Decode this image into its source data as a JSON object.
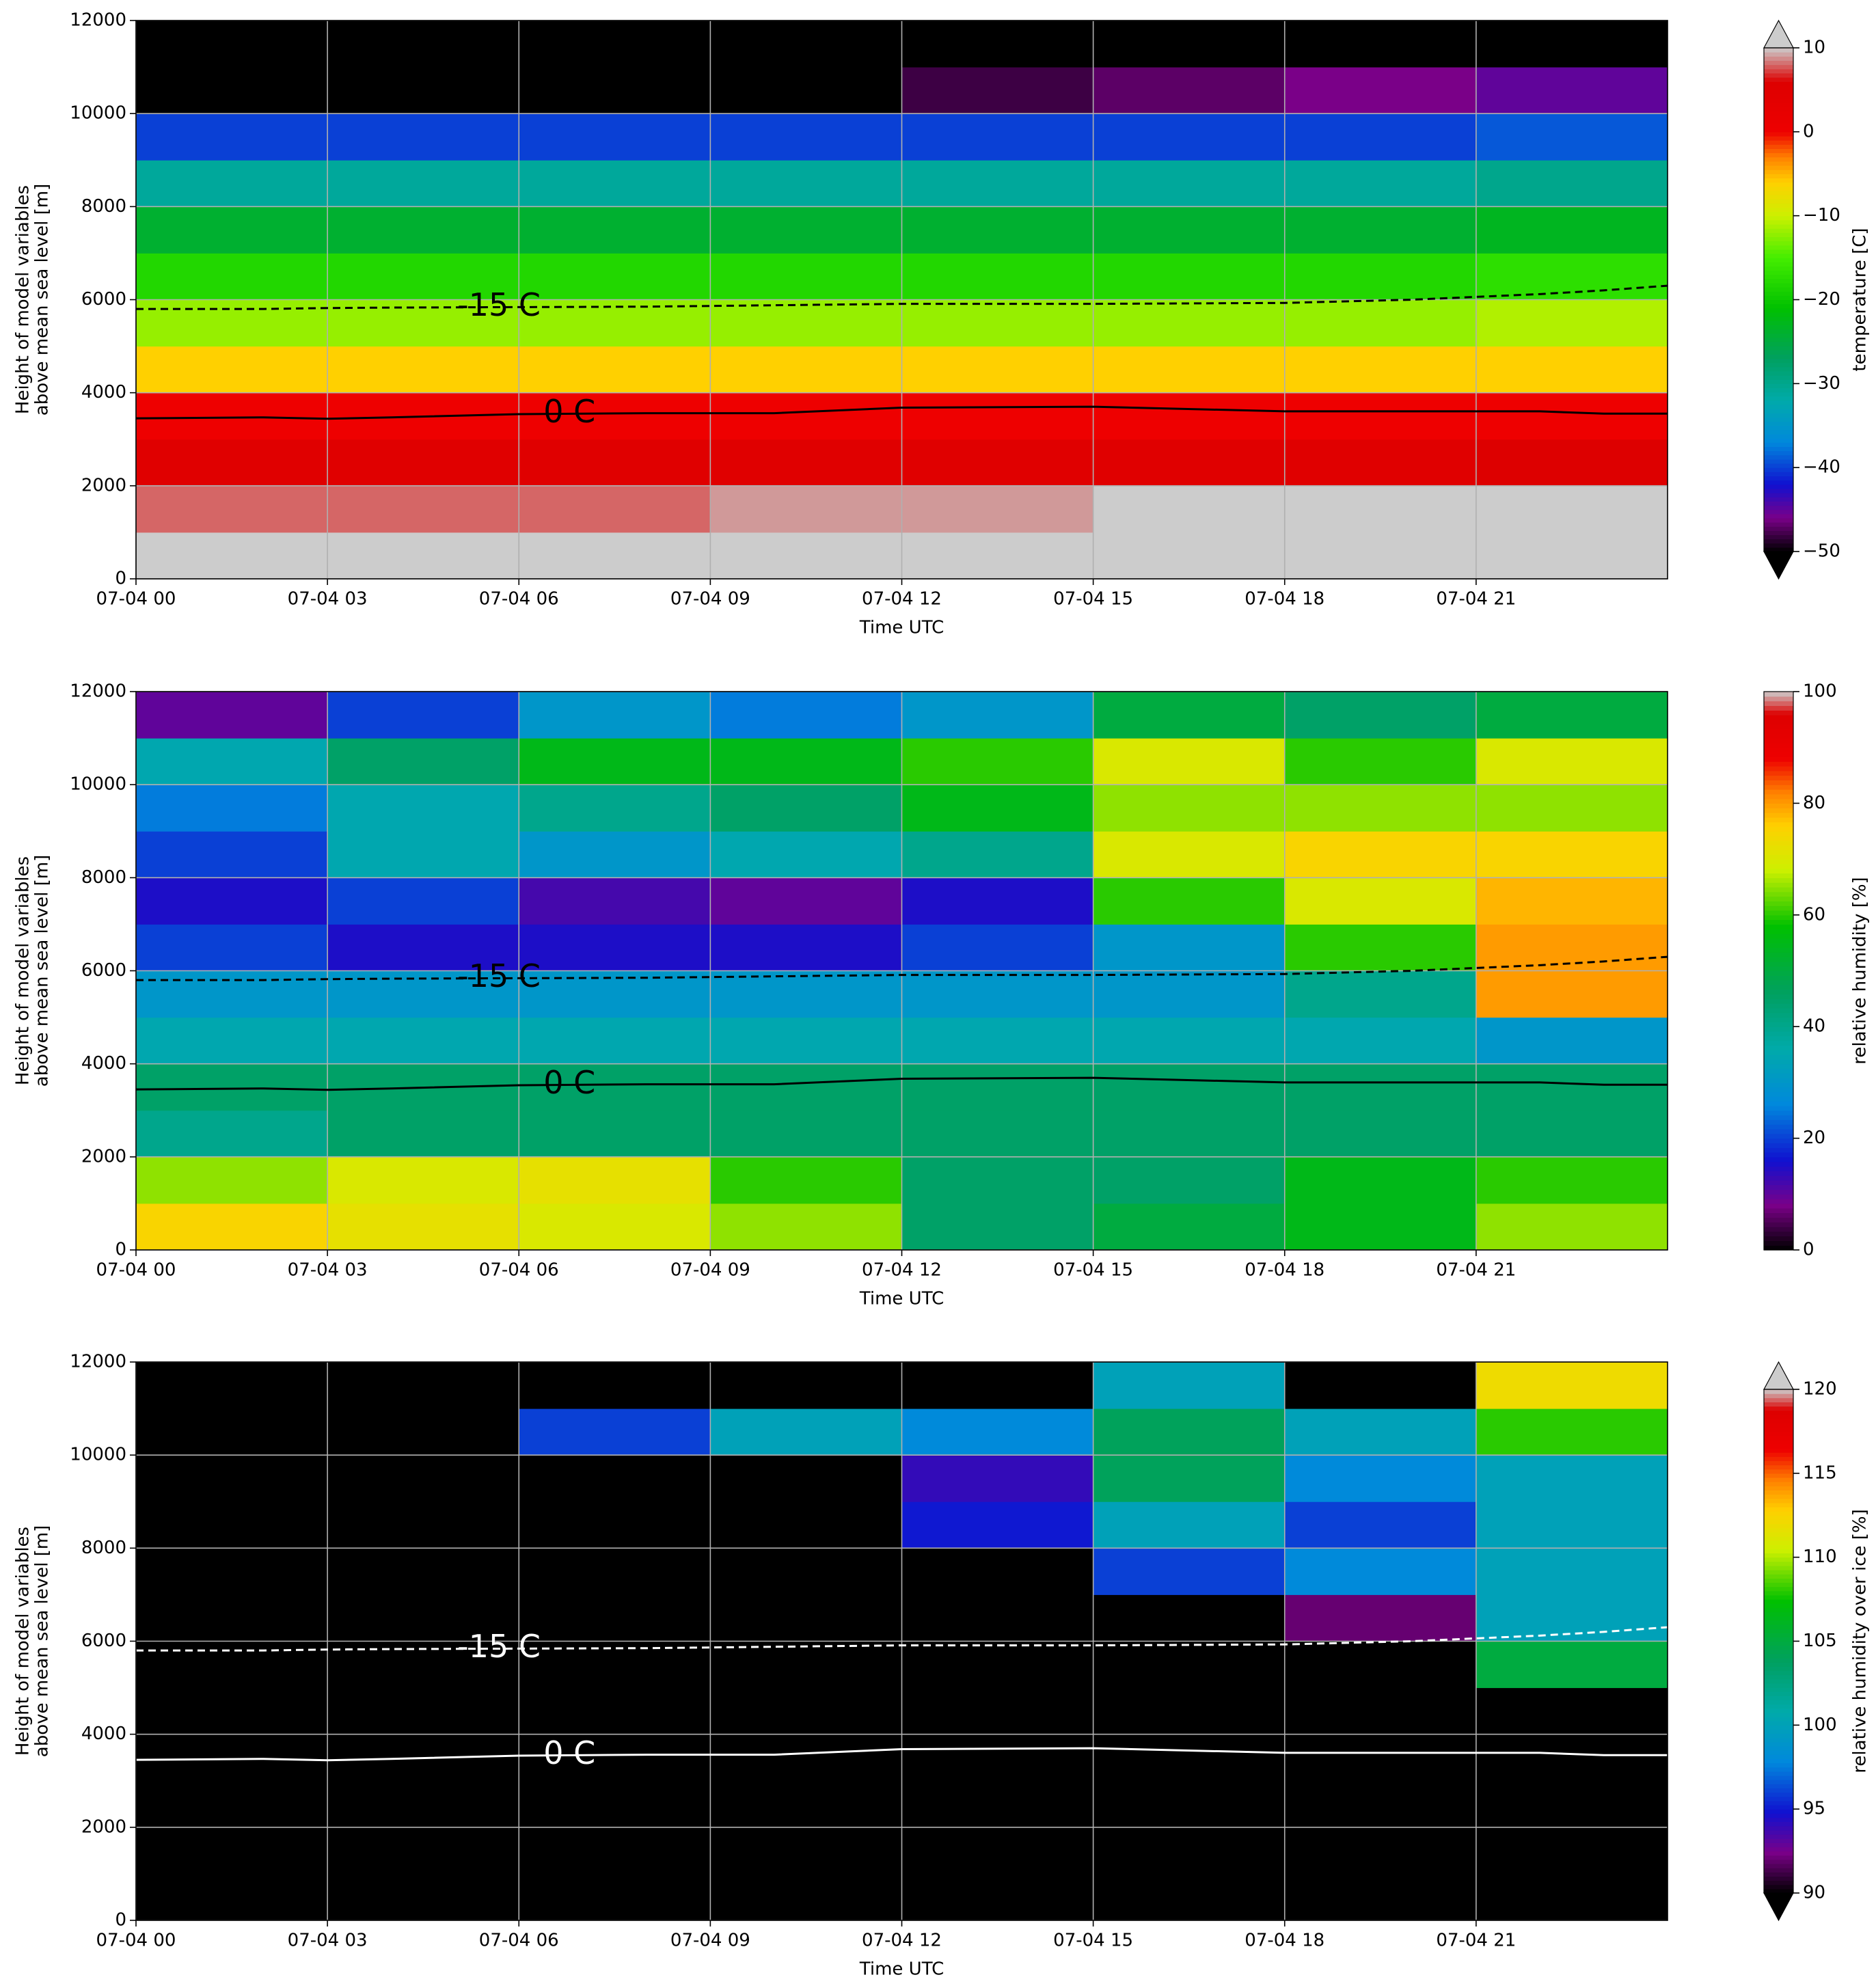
{
  "chart_data": [
    {
      "type": "heatmap",
      "xlabel": "Time UTC",
      "ylabel": [
        "Height of model variables",
        "above mean sea level [m]"
      ],
      "xlim": [
        0,
        24
      ],
      "xticks": [
        {
          "value": 0,
          "label": "07-04 00"
        },
        {
          "value": 3,
          "label": "07-04 03"
        },
        {
          "value": 6,
          "label": "07-04 06"
        },
        {
          "value": 9,
          "label": "07-04 09"
        },
        {
          "value": 12,
          "label": "07-04 12"
        },
        {
          "value": 15,
          "label": "07-04 15"
        },
        {
          "value": 18,
          "label": "07-04 18"
        },
        {
          "value": 21,
          "label": "07-04 21"
        }
      ],
      "ylim": [
        0,
        12000
      ],
      "yticks": [
        0,
        2000,
        4000,
        6000,
        8000,
        10000,
        12000
      ],
      "grid": true,
      "x": [
        1.5,
        4.5,
        7.5,
        10.5,
        13.5,
        16.5,
        19.5,
        22.5
      ],
      "y": [
        500,
        1500,
        2500,
        3500,
        4500,
        5500,
        6500,
        7500,
        8500,
        9500,
        10500,
        11500
      ],
      "z": [
        [
          12,
          10,
          11,
          12,
          13,
          14,
          15,
          16
        ],
        [
          8,
          8,
          8,
          9,
          9,
          10,
          10,
          11
        ],
        [
          5,
          5,
          5,
          5,
          5,
          5,
          5,
          6
        ],
        [
          0,
          0,
          0,
          0,
          0,
          0,
          0,
          0
        ],
        [
          -6,
          -6,
          -6,
          -6,
          -6,
          -6,
          -6,
          -6
        ],
        [
          -12,
          -12,
          -12,
          -12,
          -12,
          -12,
          -12,
          -11
        ],
        [
          -18,
          -18,
          -18,
          -18,
          -18,
          -18,
          -18,
          -17
        ],
        [
          -24,
          -24,
          -24,
          -24,
          -24,
          -24,
          -24,
          -23
        ],
        [
          -31,
          -31,
          -31,
          -31,
          -31,
          -31,
          -31,
          -30
        ],
        [
          -40,
          -40,
          -40,
          -40,
          -40,
          -40,
          -40,
          -39
        ],
        [
          -52,
          -52,
          -52,
          -50,
          -48,
          -47,
          -46,
          -45
        ],
        [
          -58,
          -58,
          -58,
          -58,
          -58,
          -58,
          -58,
          -58
        ]
      ],
      "colorbar": {
        "label": "temperature [C]",
        "lim": [
          -50,
          10
        ],
        "extend": "both",
        "under": "#000000",
        "over": "#cccccc",
        "ticks": [
          {
            "value": -50,
            "label": "−50"
          },
          {
            "value": -40,
            "label": "−40"
          },
          {
            "value": -30,
            "label": "−30"
          },
          {
            "value": -20,
            "label": "−20"
          },
          {
            "value": -10,
            "label": "−10"
          },
          0,
          10
        ],
        "colorscale": [
          [
            -50,
            "#000000"
          ],
          [
            -46,
            "#7a0088"
          ],
          [
            -42,
            "#1010d0"
          ],
          [
            -37,
            "#0088dd"
          ],
          [
            -32,
            "#00aaaa"
          ],
          [
            -27,
            "#00a060"
          ],
          [
            -21,
            "#00c000"
          ],
          [
            -15,
            "#44ee00"
          ],
          [
            -10,
            "#ccf000"
          ],
          [
            -6,
            "#ffd000"
          ],
          [
            -3,
            "#ff8000"
          ],
          [
            0,
            "#ee0000"
          ],
          [
            6,
            "#dd0000"
          ],
          [
            10,
            "#cccccc"
          ]
        ]
      },
      "contours": [
        {
          "label": "0 C",
          "color": "#000000",
          "dash": false,
          "x": [
            0,
            2,
            3,
            4,
            6,
            8,
            10,
            12,
            15,
            18,
            20,
            22,
            23,
            24
          ],
          "y": [
            3450,
            3470,
            3440,
            3470,
            3540,
            3560,
            3560,
            3680,
            3700,
            3600,
            3600,
            3600,
            3550,
            3550
          ]
        },
        {
          "label": "-15 C",
          "color": "#000000",
          "dash": true,
          "x": [
            0,
            2,
            3,
            4,
            6,
            8,
            10,
            12,
            15,
            18,
            20,
            22,
            23,
            24
          ],
          "y": [
            5800,
            5800,
            5820,
            5830,
            5840,
            5850,
            5880,
            5910,
            5910,
            5930,
            6000,
            6120,
            6200,
            6300
          ]
        }
      ]
    },
    {
      "type": "heatmap",
      "xlabel": "Time UTC",
      "ylabel": [
        "Height of model variables",
        "above mean sea level [m]"
      ],
      "xlim": [
        0,
        24
      ],
      "xticks": [
        {
          "value": 0,
          "label": "07-04 00"
        },
        {
          "value": 3,
          "label": "07-04 03"
        },
        {
          "value": 6,
          "label": "07-04 06"
        },
        {
          "value": 9,
          "label": "07-04 09"
        },
        {
          "value": 12,
          "label": "07-04 12"
        },
        {
          "value": 15,
          "label": "07-04 15"
        },
        {
          "value": 18,
          "label": "07-04 18"
        },
        {
          "value": 21,
          "label": "07-04 21"
        }
      ],
      "ylim": [
        0,
        12000
      ],
      "yticks": [
        0,
        2000,
        4000,
        6000,
        8000,
        10000,
        12000
      ],
      "grid": true,
      "x": [
        1.5,
        4.5,
        7.5,
        10.5,
        13.5,
        16.5,
        19.5,
        22.5
      ],
      "y": [
        500,
        1500,
        2500,
        3500,
        4500,
        5500,
        6500,
        7500,
        8500,
        9500,
        10500,
        11500
      ],
      "z": [
        [
          75,
          72,
          70,
          65,
          45,
          50,
          55,
          65
        ],
        [
          65,
          70,
          72,
          60,
          45,
          45,
          55,
          60
        ],
        [
          40,
          45,
          45,
          45,
          45,
          45,
          45,
          45
        ],
        [
          45,
          45,
          45,
          45,
          45,
          45,
          45,
          45
        ],
        [
          35,
          35,
          35,
          35,
          35,
          35,
          35,
          30
        ],
        [
          30,
          30,
          30,
          30,
          30,
          30,
          40,
          80
        ],
        [
          20,
          15,
          15,
          15,
          20,
          30,
          60,
          80
        ],
        [
          15,
          20,
          12,
          10,
          15,
          60,
          70,
          78
        ],
        [
          20,
          35,
          30,
          35,
          40,
          70,
          75,
          75
        ],
        [
          25,
          35,
          40,
          45,
          55,
          65,
          65,
          65
        ],
        [
          35,
          45,
          55,
          55,
          60,
          70,
          60,
          70
        ],
        [
          10,
          20,
          30,
          25,
          30,
          50,
          45,
          50
        ]
      ],
      "colorbar": {
        "label": "relative humidity [%]",
        "lim": [
          0,
          100
        ],
        "extend": "neither",
        "under": "#000000",
        "over": "#cccccc",
        "ticks": [
          0,
          20,
          40,
          60,
          80,
          100
        ],
        "colorscale": [
          [
            0,
            "#000000"
          ],
          [
            8,
            "#7a0088"
          ],
          [
            16,
            "#1010d0"
          ],
          [
            26,
            "#0088dd"
          ],
          [
            36,
            "#00aaaa"
          ],
          [
            46,
            "#00a060"
          ],
          [
            58,
            "#00c000"
          ],
          [
            68,
            "#ccf000"
          ],
          [
            76,
            "#ffd000"
          ],
          [
            82,
            "#ff8000"
          ],
          [
            88,
            "#ee0000"
          ],
          [
            96,
            "#dd0000"
          ],
          [
            100,
            "#cccccc"
          ]
        ]
      },
      "contours": [
        {
          "label": "0 C",
          "color": "#000000",
          "dash": false,
          "x": [
            0,
            2,
            3,
            4,
            6,
            8,
            10,
            12,
            15,
            18,
            20,
            22,
            23,
            24
          ],
          "y": [
            3450,
            3470,
            3440,
            3470,
            3540,
            3560,
            3560,
            3680,
            3700,
            3600,
            3600,
            3600,
            3550,
            3550
          ]
        },
        {
          "label": "-15 C",
          "color": "#000000",
          "dash": true,
          "x": [
            0,
            2,
            3,
            4,
            6,
            8,
            10,
            12,
            15,
            18,
            20,
            22,
            23,
            24
          ],
          "y": [
            5800,
            5800,
            5820,
            5830,
            5840,
            5850,
            5880,
            5910,
            5910,
            5930,
            6000,
            6120,
            6200,
            6300
          ]
        }
      ]
    },
    {
      "type": "heatmap",
      "xlabel": "Time UTC",
      "ylabel": [
        "Height of model variables",
        "above mean sea level [m]"
      ],
      "xlim": [
        0,
        24
      ],
      "xticks": [
        {
          "value": 0,
          "label": "07-04 00"
        },
        {
          "value": 3,
          "label": "07-04 03"
        },
        {
          "value": 6,
          "label": "07-04 06"
        },
        {
          "value": 9,
          "label": "07-04 09"
        },
        {
          "value": 12,
          "label": "07-04 12"
        },
        {
          "value": 15,
          "label": "07-04 15"
        },
        {
          "value": 18,
          "label": "07-04 18"
        },
        {
          "value": 21,
          "label": "07-04 21"
        }
      ],
      "ylim": [
        0,
        12000
      ],
      "yticks": [
        0,
        2000,
        4000,
        6000,
        8000,
        10000,
        12000
      ],
      "grid": true,
      "x": [
        1.5,
        4.5,
        7.5,
        10.5,
        13.5,
        16.5,
        19.5,
        22.5
      ],
      "y": [
        500,
        1500,
        2500,
        3500,
        4500,
        5500,
        6500,
        7500,
        8500,
        9500,
        10500,
        11500
      ],
      "z": [
        [
          80,
          80,
          80,
          80,
          80,
          80,
          80,
          80
        ],
        [
          80,
          80,
          80,
          80,
          80,
          80,
          80,
          80
        ],
        [
          80,
          80,
          80,
          80,
          80,
          80,
          80,
          80
        ],
        [
          80,
          80,
          80,
          80,
          80,
          80,
          80,
          80
        ],
        [
          80,
          80,
          80,
          80,
          80,
          80,
          80,
          80
        ],
        [
          80,
          80,
          80,
          80,
          80,
          80,
          80,
          105
        ],
        [
          80,
          80,
          80,
          80,
          80,
          80,
          92,
          100
        ],
        [
          80,
          80,
          80,
          80,
          80,
          96,
          98,
          100
        ],
        [
          80,
          80,
          80,
          80,
          95,
          100,
          96,
          100
        ],
        [
          80,
          80,
          80,
          80,
          94,
          104,
          98,
          100
        ],
        [
          80,
          80,
          96,
          100,
          98,
          104,
          100,
          108
        ],
        [
          80,
          80,
          80,
          80,
          80,
          100,
          80,
          112
        ]
      ],
      "colorbar": {
        "label": "relative humidity over ice [%]",
        "lim": [
          90,
          120
        ],
        "extend": "both",
        "under": "#000000",
        "over": "#cccccc",
        "ticks": [
          90,
          95,
          100,
          105,
          110,
          115,
          120
        ],
        "colorscale": [
          [
            90,
            "#000000"
          ],
          [
            92.4,
            "#7a0088"
          ],
          [
            94.8,
            "#1010d0"
          ],
          [
            97.8,
            "#0088dd"
          ],
          [
            100.8,
            "#00aaaa"
          ],
          [
            103.8,
            "#00a060"
          ],
          [
            107.4,
            "#00c000"
          ],
          [
            110.4,
            "#ccf000"
          ],
          [
            112.8,
            "#ffd000"
          ],
          [
            114.6,
            "#ff8000"
          ],
          [
            116.4,
            "#ee0000"
          ],
          [
            118.8,
            "#dd0000"
          ],
          [
            120,
            "#cccccc"
          ]
        ]
      },
      "contours": [
        {
          "label": "0 C",
          "color": "#ffffff",
          "dash": false,
          "x": [
            0,
            2,
            3,
            4,
            6,
            8,
            10,
            12,
            15,
            18,
            20,
            22,
            23,
            24
          ],
          "y": [
            3450,
            3470,
            3440,
            3470,
            3540,
            3560,
            3560,
            3680,
            3700,
            3600,
            3600,
            3600,
            3550,
            3550
          ]
        },
        {
          "label": "-15 C",
          "color": "#ffffff",
          "dash": true,
          "x": [
            0,
            2,
            3,
            4,
            6,
            8,
            10,
            12,
            15,
            18,
            20,
            22,
            23,
            24
          ],
          "y": [
            5800,
            5800,
            5820,
            5830,
            5840,
            5850,
            5880,
            5910,
            5910,
            5930,
            6000,
            6120,
            6200,
            6300
          ]
        }
      ]
    }
  ]
}
